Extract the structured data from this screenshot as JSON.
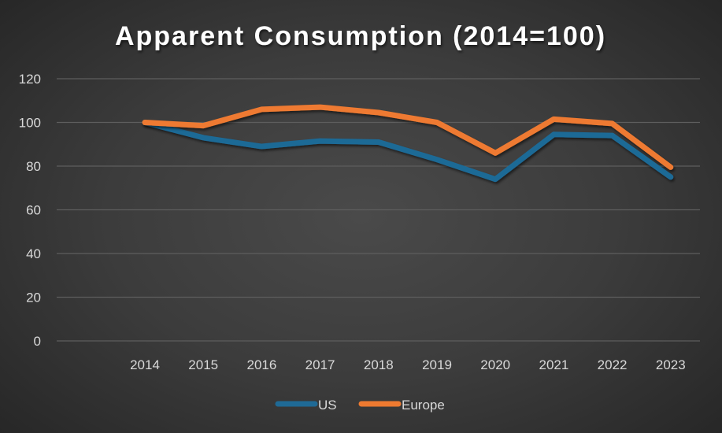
{
  "chart_data": {
    "type": "line",
    "title": "Apparent Consumption (2014=100)",
    "xlabel": "",
    "ylabel": "",
    "categories": [
      "2014",
      "2015",
      "2016",
      "2017",
      "2018",
      "2019",
      "2020",
      "2021",
      "2022",
      "2023"
    ],
    "series": [
      {
        "name": "US",
        "color": "#1f6a96",
        "values": [
          100,
          93,
          89,
          91.5,
          91,
          83,
          74,
          94.5,
          94,
          75
        ]
      },
      {
        "name": "Europe",
        "color": "#ee7a30",
        "values": [
          100,
          98.5,
          106,
          107,
          104.5,
          100,
          86,
          101.5,
          99.5,
          79.5
        ]
      }
    ],
    "ylim": [
      0,
      120
    ],
    "yticks": [
      0,
      20,
      40,
      60,
      80,
      100,
      120
    ],
    "grid": true,
    "legend_position": "bottom"
  }
}
